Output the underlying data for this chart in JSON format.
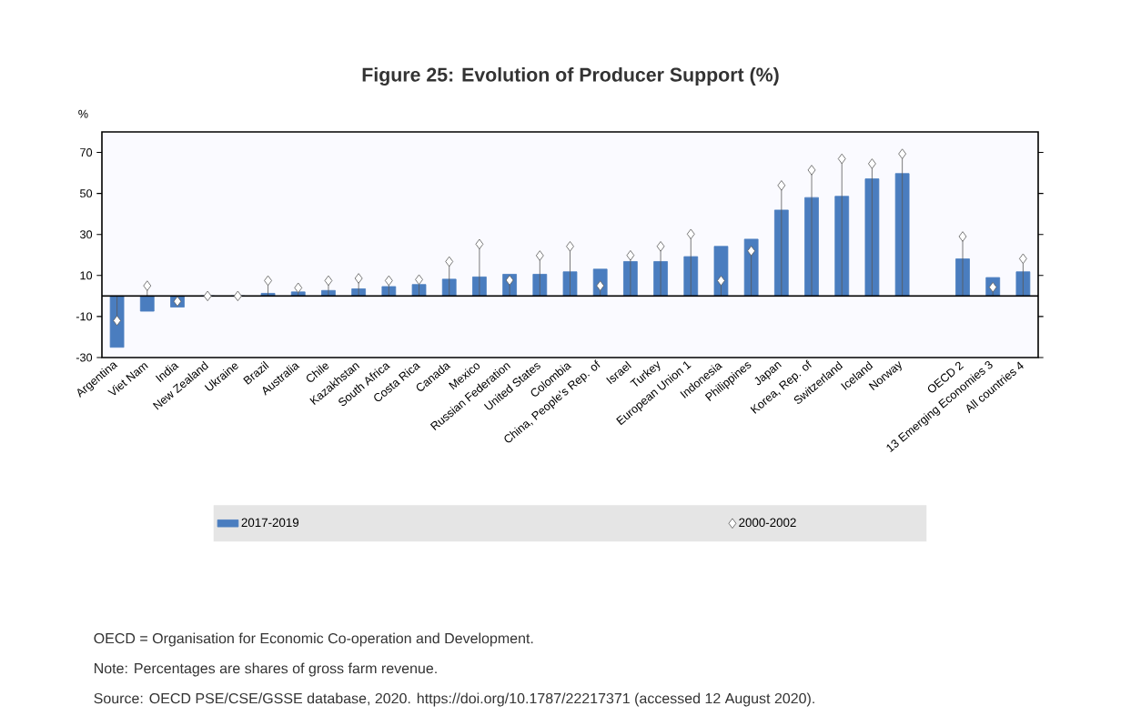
{
  "chart_data": {
    "type": "bar",
    "title": "Figure 25: Evolution of Producer Support (%)",
    "ylabel": "%",
    "categories": [
      "Argentina",
      "Viet Nam",
      "India",
      "New Zealand",
      "Ukraine",
      "Brazil",
      "Australia",
      "Chile",
      "Kazakhstan",
      "South Africa",
      "Costa Rica",
      "Canada",
      "Mexico",
      "Russian Federation",
      "United States",
      "Colombia",
      "China, People's Rep. of",
      "Israel",
      "Turkey",
      "European Union 1",
      "Indonesia",
      "Philippines",
      "Japan",
      "Korea, Rep. of",
      "Switzerland",
      "Iceland",
      "Norway",
      null,
      "OECD 2",
      "13 Emerging Economies 3",
      "All countries 4"
    ],
    "series": [
      {
        "name": "2017-2019",
        "color": "#4a7dbf",
        "values": [
          -25,
          -7.4,
          -5.4,
          0,
          0,
          1.3,
          2,
          2.7,
          3.5,
          4.6,
          5.6,
          8.2,
          9.3,
          10.6,
          10.6,
          11.8,
          13.1,
          16.8,
          16.8,
          19.2,
          24.2,
          27.7,
          41.9,
          48,
          48.6,
          57.1,
          59.7,
          null,
          18.1,
          9,
          11.8
        ]
      },
      {
        "name": "2000-2002",
        "type": "lollipop",
        "color": "#595959",
        "values": [
          -12,
          5,
          -2.6,
          0,
          0,
          7.5,
          4,
          7.5,
          8.6,
          7.5,
          8,
          16.8,
          25.3,
          7.7,
          19.7,
          24.2,
          5,
          19.8,
          24.2,
          30.2,
          7.5,
          22,
          53.9,
          61.4,
          66.9,
          64.5,
          69.3,
          null,
          29,
          4.3,
          18.2
        ]
      }
    ],
    "ylim": [
      -30,
      80
    ],
    "yticks": [
      -30,
      -10,
      10,
      30,
      50,
      70
    ],
    "marker": "diamond",
    "legend": "bottom",
    "annotations": [
      "OECD = Organisation for Economic Co-operation and Development.",
      "Note: Percentages are shares of gross farm revenue.",
      "Source: OECD PSE/CSE/GSSE database, 2020. https://doi.org/10.1787/22217371 (accessed 12 August 2020)."
    ]
  }
}
